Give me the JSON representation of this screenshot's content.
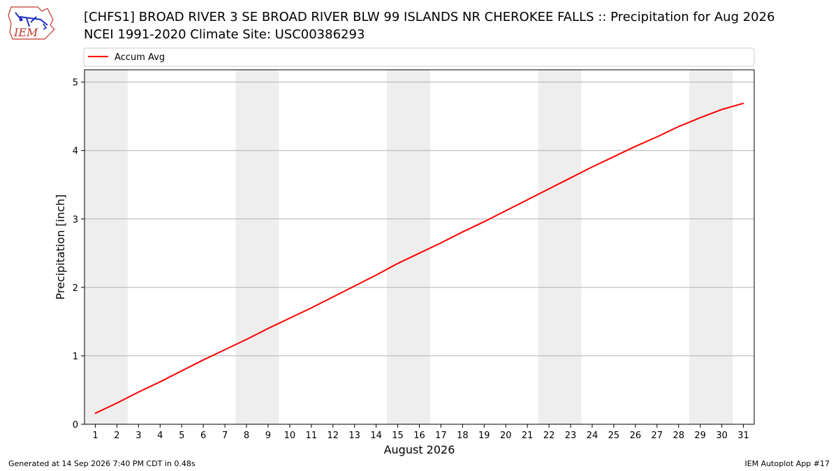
{
  "logo": {
    "text": "IEM"
  },
  "header": {
    "title": "[CHFS1] BROAD RIVER 3 SE BROAD RIVER BLW 99 ISLANDS NR CHEROKEE FALLS :: Precipitation for Aug 2026",
    "subtitle": "NCEI 1991-2020 Climate Site: USC00386293"
  },
  "footer": {
    "generated": "Generated at 14 Sep 2026 7:40 PM CDT in 0.48s",
    "app": "IEM Autoplot App #17"
  },
  "colors": {
    "series": "#ff0000",
    "weekend_shade": "#eeeeee",
    "grid": "#b0b0b0"
  },
  "chart_data": {
    "type": "line",
    "title": "[CHFS1] BROAD RIVER 3 SE BROAD RIVER BLW 99 ISLANDS NR CHEROKEE FALLS :: Precipitation for Aug 2026",
    "subtitle": "NCEI 1991-2020 Climate Site: USC00386293",
    "xlabel": "August 2026",
    "ylabel": "Precipitation [inch]",
    "x": [
      1,
      2,
      3,
      4,
      5,
      6,
      7,
      8,
      9,
      10,
      11,
      12,
      13,
      14,
      15,
      16,
      17,
      18,
      19,
      20,
      21,
      22,
      23,
      24,
      25,
      26,
      27,
      28,
      29,
      30,
      31
    ],
    "xlim": [
      0.5,
      31.5
    ],
    "ylim": [
      0,
      5.18
    ],
    "yticks": [
      0,
      1,
      2,
      3,
      4,
      5
    ],
    "grid": "horizontal",
    "legend_position": "top",
    "shaded_days": [
      [
        1,
        2
      ],
      [
        8,
        9
      ],
      [
        15,
        16
      ],
      [
        22,
        23
      ],
      [
        29,
        30
      ]
    ],
    "series": [
      {
        "name": "Accum Avg",
        "color": "#ff0000",
        "values": [
          0.16,
          0.31,
          0.47,
          0.62,
          0.78,
          0.94,
          1.09,
          1.24,
          1.4,
          1.55,
          1.7,
          1.86,
          2.02,
          2.18,
          2.35,
          2.5,
          2.65,
          2.81,
          2.96,
          3.12,
          3.28,
          3.44,
          3.6,
          3.76,
          3.91,
          4.06,
          4.2,
          4.35,
          4.48,
          4.6,
          4.69
        ]
      }
    ]
  }
}
